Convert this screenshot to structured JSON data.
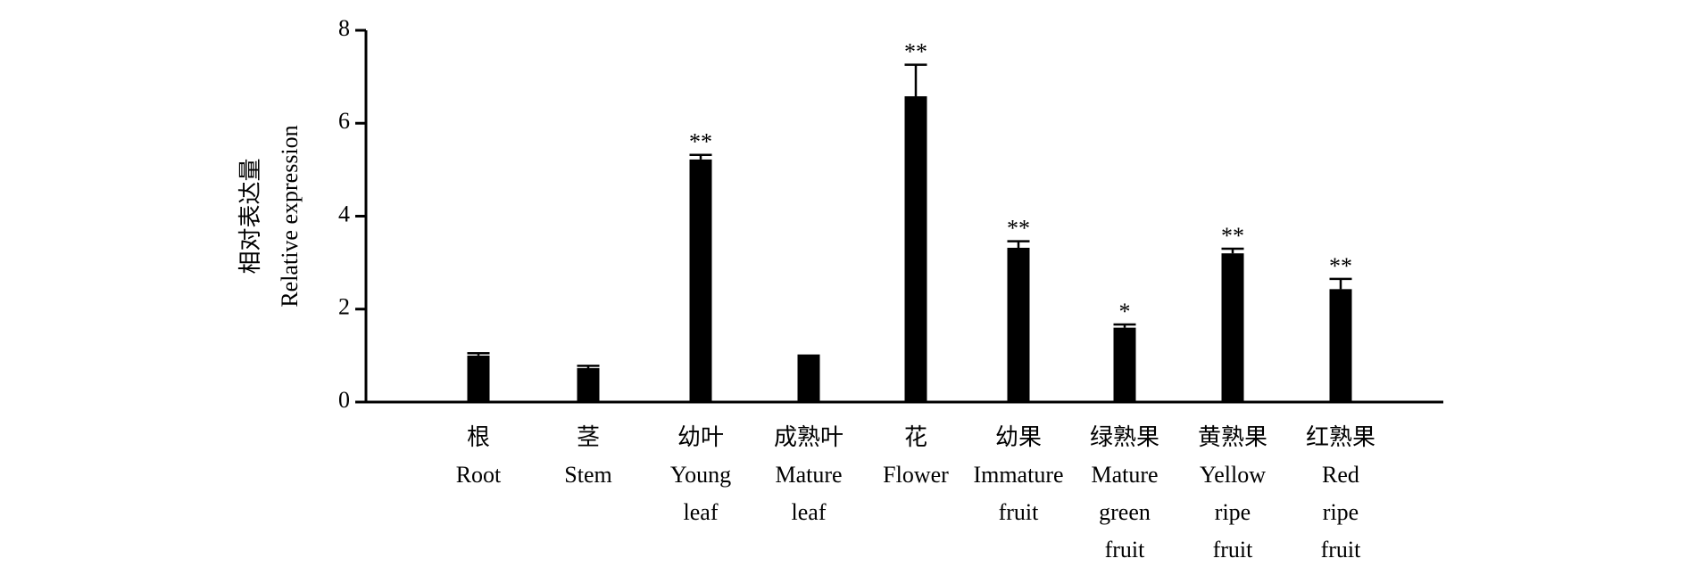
{
  "chart_data": {
    "type": "bar",
    "y_label": [
      "相对表达量",
      "Relative expression"
    ],
    "categories": [
      [
        "根",
        "Root"
      ],
      [
        "茎",
        "Stem"
      ],
      [
        "幼叶",
        "Young",
        "leaf"
      ],
      [
        "成熟叶",
        "Mature",
        "leaf"
      ],
      [
        "花",
        "Flower"
      ],
      [
        "幼果",
        "Immature",
        "fruit"
      ],
      [
        "绿熟果",
        "Mature",
        "green",
        "fruit"
      ],
      [
        "黄熟果",
        "Yellow",
        "ripe",
        "fruit"
      ],
      [
        "红熟果",
        "Red",
        "ripe",
        "fruit"
      ]
    ],
    "values": [
      1.0,
      0.73,
      5.22,
      1.0,
      6.58,
      3.32,
      1.6,
      3.2,
      2.43
    ],
    "errors": [
      0.05,
      0.05,
      0.1,
      0.0,
      0.68,
      0.14,
      0.07,
      0.1,
      0.22
    ],
    "significance": [
      null,
      null,
      "**",
      null,
      "**",
      "**",
      "*",
      "**",
      "**"
    ],
    "color": "#000000",
    "ylim": [
      0,
      8
    ],
    "yticks": [
      0,
      2,
      4,
      6,
      8
    ],
    "grid": false
  }
}
